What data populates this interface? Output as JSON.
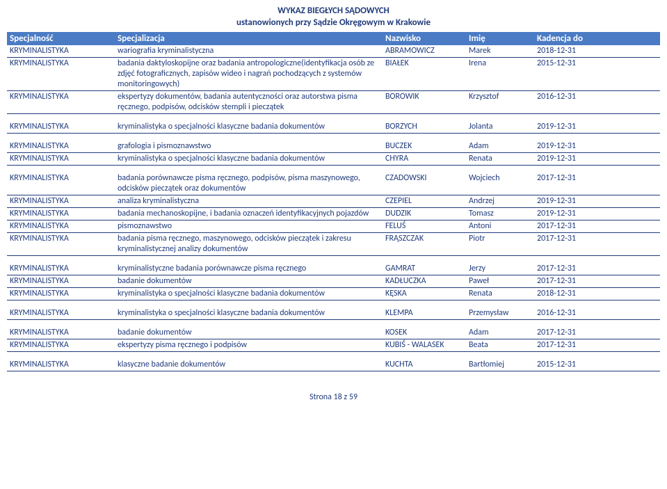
{
  "title": {
    "line1": "WYKAZ BIEGŁYCH SĄDOWYCH",
    "line2": "ustanowionych przy Sądzie Okręgowym w Krakowie"
  },
  "headers": {
    "spec": "Specjalność",
    "spec2": "Specjalizacja",
    "nazw": "Nazwisko",
    "imie": "Imię",
    "kad": "Kadencja do"
  },
  "footer": "Strona 18 z 59",
  "groups": [
    {
      "rows": [
        {
          "spec": "KRYMINALISTYKA",
          "spec2": "wariografia kryminalistyczna",
          "nazw": "ABRAMOWICZ",
          "imie": "Marek",
          "kad": "2018-12-31"
        },
        {
          "spec": "KRYMINALISTYKA",
          "spec2": "badania daktyloskopijne oraz badania antropologiczne(identyfikacja osób ze zdjęć fotograficznych, zapisów wideo i nagrań pochodzących z systemów monitoringowych)",
          "nazw": "BIAŁEK",
          "imie": "Irena",
          "kad": "2015-12-31"
        },
        {
          "spec": "KRYMINALISTYKA",
          "spec2": "ekspertyzy dokumentów, badania autentyczności oraz autorstwa pisma ręcznego, podpisów, odcisków stempli i pieczątek",
          "nazw": "BOROWIK",
          "imie": "Krzysztof",
          "kad": "2016-12-31"
        }
      ]
    },
    {
      "rows": [
        {
          "spec": "KRYMINALISTYKA",
          "spec2": "kryminalistyka o specjalności klasyczne badania dokumentów",
          "nazw": "BORZYCH",
          "imie": "Jolanta",
          "kad": "2019-12-31"
        }
      ]
    },
    {
      "rows": [
        {
          "spec": "KRYMINALISTYKA",
          "spec2": "grafologia i pismoznawstwo",
          "nazw": "BUCZEK",
          "imie": "Adam",
          "kad": "2019-12-31"
        },
        {
          "spec": "KRYMINALISTYKA",
          "spec2": "kryminalistyka o specjalności klasyczne badania dokumentów",
          "nazw": "CHYRA",
          "imie": "Renata",
          "kad": "2019-12-31"
        }
      ]
    },
    {
      "rows": [
        {
          "spec": "KRYMINALISTYKA",
          "spec2": "badania porównawcze pisma ręcznego, podpisów, pisma maszynowego, odcisków pieczątek oraz dokumentów",
          "nazw": "CZADOWSKI",
          "imie": "Wojciech",
          "kad": "2017-12-31"
        },
        {
          "spec": "KRYMINALISTYKA",
          "spec2": "analiza kryminalistyczna",
          "nazw": "CZEPIEL",
          "imie": "Andrzej",
          "kad": "2019-12-31"
        },
        {
          "spec": "KRYMINALISTYKA",
          "spec2": "badania mechanoskopijne, i badania oznaczeń identyfikacyjnych pojazdów",
          "nazw": "DUDZIK",
          "imie": "Tomasz",
          "kad": "2019-12-31"
        },
        {
          "spec": "KRYMINALISTYKA",
          "spec2": "pismoznawstwo",
          "nazw": "FELUŚ",
          "imie": "Antoni",
          "kad": "2017-12-31"
        },
        {
          "spec": "KRYMINALISTYKA",
          "spec2": "badania pisma ręcznego, maszynowego, odcisków pieczątek i zakresu kryminalistycznej analizy dokumentów",
          "nazw": "FRĄSZCZAK",
          "imie": "Piotr",
          "kad": "2017-12-31"
        }
      ]
    },
    {
      "rows": [
        {
          "spec": "KRYMINALISTYKA",
          "spec2": "kryminalistyczne badania porównawcze pisma ręcznego",
          "nazw": "GAMRAT",
          "imie": "Jerzy",
          "kad": "2017-12-31"
        },
        {
          "spec": "KRYMINALISTYKA",
          "spec2": "badanie dokumentów",
          "nazw": "KADŁUCZKA",
          "imie": "Paweł",
          "kad": "2017-12-31"
        },
        {
          "spec": "KRYMINALISTYKA",
          "spec2": "kryminalistyka o specjalności klasyczne badania dokumentów",
          "nazw": "KĘSKA",
          "imie": "Renata",
          "kad": "2018-12-31"
        }
      ]
    },
    {
      "rows": [
        {
          "spec": "KRYMINALISTYKA",
          "spec2": "kryminalistyka o specjalności klasyczne badania dokumentów",
          "nazw": "KLEMPA",
          "imie": "Przemysław",
          "kad": "2016-12-31"
        }
      ]
    },
    {
      "rows": [
        {
          "spec": "KRYMINALISTYKA",
          "spec2": "badanie dokumentów",
          "nazw": "KOSEK",
          "imie": "Adam",
          "kad": "2017-12-31"
        },
        {
          "spec": "KRYMINALISTYKA",
          "spec2": "ekspertyzy pisma ręcznego i podpisów",
          "nazw": "KUBIŚ - WALASEK",
          "imie": "Beata",
          "kad": "2017-12-31"
        }
      ]
    },
    {
      "rows": [
        {
          "spec": "KRYMINALISTYKA",
          "spec2": "klasyczne badanie dokumentów",
          "nazw": "KUCHTA",
          "imie": "Bartłomiej",
          "kad": "2015-12-31"
        }
      ]
    }
  ]
}
